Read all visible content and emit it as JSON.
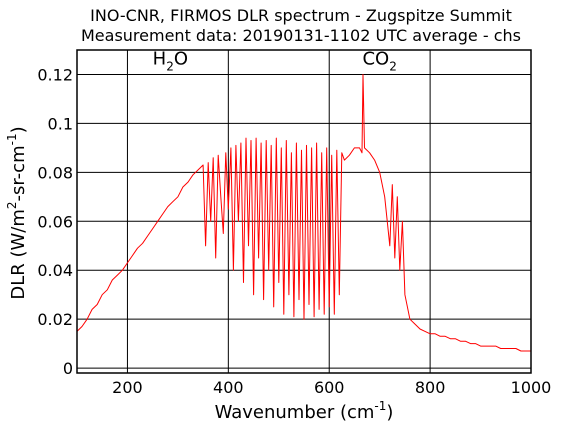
{
  "chart_data": {
    "type": "line",
    "title": "INO-CNR, FIRMOS DLR spectrum - Zugspitze Summit",
    "subtitle": "Measurement data: 20190131-1102 UTC average - chs",
    "xlabel": {
      "main": "Wavenumber (cm",
      "sup": "-1",
      "close": ")"
    },
    "ylabel": {
      "main": "DLR (W/m",
      "sup1": "2",
      "mid": "-sr-cm",
      "sup2": "-1",
      "close": ")"
    },
    "xlim": [
      100,
      1000
    ],
    "ylim": [
      -0.002,
      0.13
    ],
    "xticks": [
      200,
      400,
      600,
      800,
      1000
    ],
    "xtick_labels": [
      "200",
      "400",
      "600",
      "800",
      "1000"
    ],
    "yticks": [
      0,
      0.02,
      0.04,
      0.06,
      0.08,
      0.1,
      0.12
    ],
    "ytick_labels": [
      "0",
      "0.02",
      "0.04",
      "0.06",
      "0.08",
      "0.1",
      "0.12"
    ],
    "grid": true,
    "color": "#ff0000",
    "annotations": [
      {
        "base": "H",
        "sub": "2",
        "tail": "O",
        "x": 285,
        "y": 0.124
      },
      {
        "base": "CO",
        "sub": "2",
        "tail": "",
        "x": 700,
        "y": 0.124
      }
    ],
    "series": [
      {
        "x": [
          100,
          110,
          120,
          130,
          140,
          150,
          160,
          170,
          180,
          190,
          200,
          210,
          220,
          230,
          240,
          250,
          260,
          270,
          280,
          290,
          300,
          310,
          320,
          330,
          340,
          350,
          355,
          360,
          365,
          370,
          375,
          380,
          385,
          390,
          395,
          400,
          405,
          410,
          415,
          420,
          425,
          430,
          435,
          440,
          445,
          450,
          455,
          460,
          465,
          470,
          475,
          480,
          485,
          490,
          495,
          500,
          505,
          510,
          515,
          520,
          525,
          530,
          535,
          540,
          545,
          550,
          555,
          560,
          565,
          570,
          575,
          580,
          585,
          590,
          595,
          600,
          605,
          610,
          615,
          620,
          625,
          630,
          640,
          650,
          660,
          665,
          667,
          670,
          680,
          690,
          700,
          710,
          720,
          725,
          730,
          735,
          740,
          745,
          750,
          760,
          770,
          780,
          790,
          800,
          810,
          820,
          830,
          840,
          850,
          860,
          870,
          880,
          890,
          900,
          910,
          920,
          930,
          940,
          950,
          960,
          970,
          980,
          990,
          1000
        ],
        "y": [
          0.015,
          0.017,
          0.02,
          0.024,
          0.026,
          0.03,
          0.032,
          0.036,
          0.038,
          0.04,
          0.043,
          0.046,
          0.049,
          0.051,
          0.054,
          0.057,
          0.06,
          0.063,
          0.066,
          0.068,
          0.07,
          0.074,
          0.076,
          0.079,
          0.081,
          0.083,
          0.05,
          0.084,
          0.06,
          0.086,
          0.045,
          0.087,
          0.07,
          0.055,
          0.088,
          0.065,
          0.09,
          0.04,
          0.091,
          0.06,
          0.092,
          0.035,
          0.094,
          0.05,
          0.093,
          0.03,
          0.094,
          0.045,
          0.092,
          0.028,
          0.093,
          0.04,
          0.091,
          0.025,
          0.094,
          0.035,
          0.09,
          0.022,
          0.093,
          0.03,
          0.088,
          0.021,
          0.092,
          0.028,
          0.089,
          0.02,
          0.091,
          0.026,
          0.09,
          0.021,
          0.092,
          0.024,
          0.088,
          0.022,
          0.09,
          0.025,
          0.087,
          0.022,
          0.089,
          0.03,
          0.088,
          0.085,
          0.087,
          0.09,
          0.09,
          0.088,
          0.12,
          0.09,
          0.088,
          0.085,
          0.08,
          0.07,
          0.05,
          0.075,
          0.045,
          0.07,
          0.04,
          0.06,
          0.03,
          0.02,
          0.018,
          0.016,
          0.015,
          0.014,
          0.014,
          0.013,
          0.013,
          0.012,
          0.012,
          0.011,
          0.011,
          0.01,
          0.01,
          0.009,
          0.009,
          0.009,
          0.009,
          0.008,
          0.008,
          0.008,
          0.008,
          0.007,
          0.007,
          0.007
        ]
      }
    ]
  }
}
